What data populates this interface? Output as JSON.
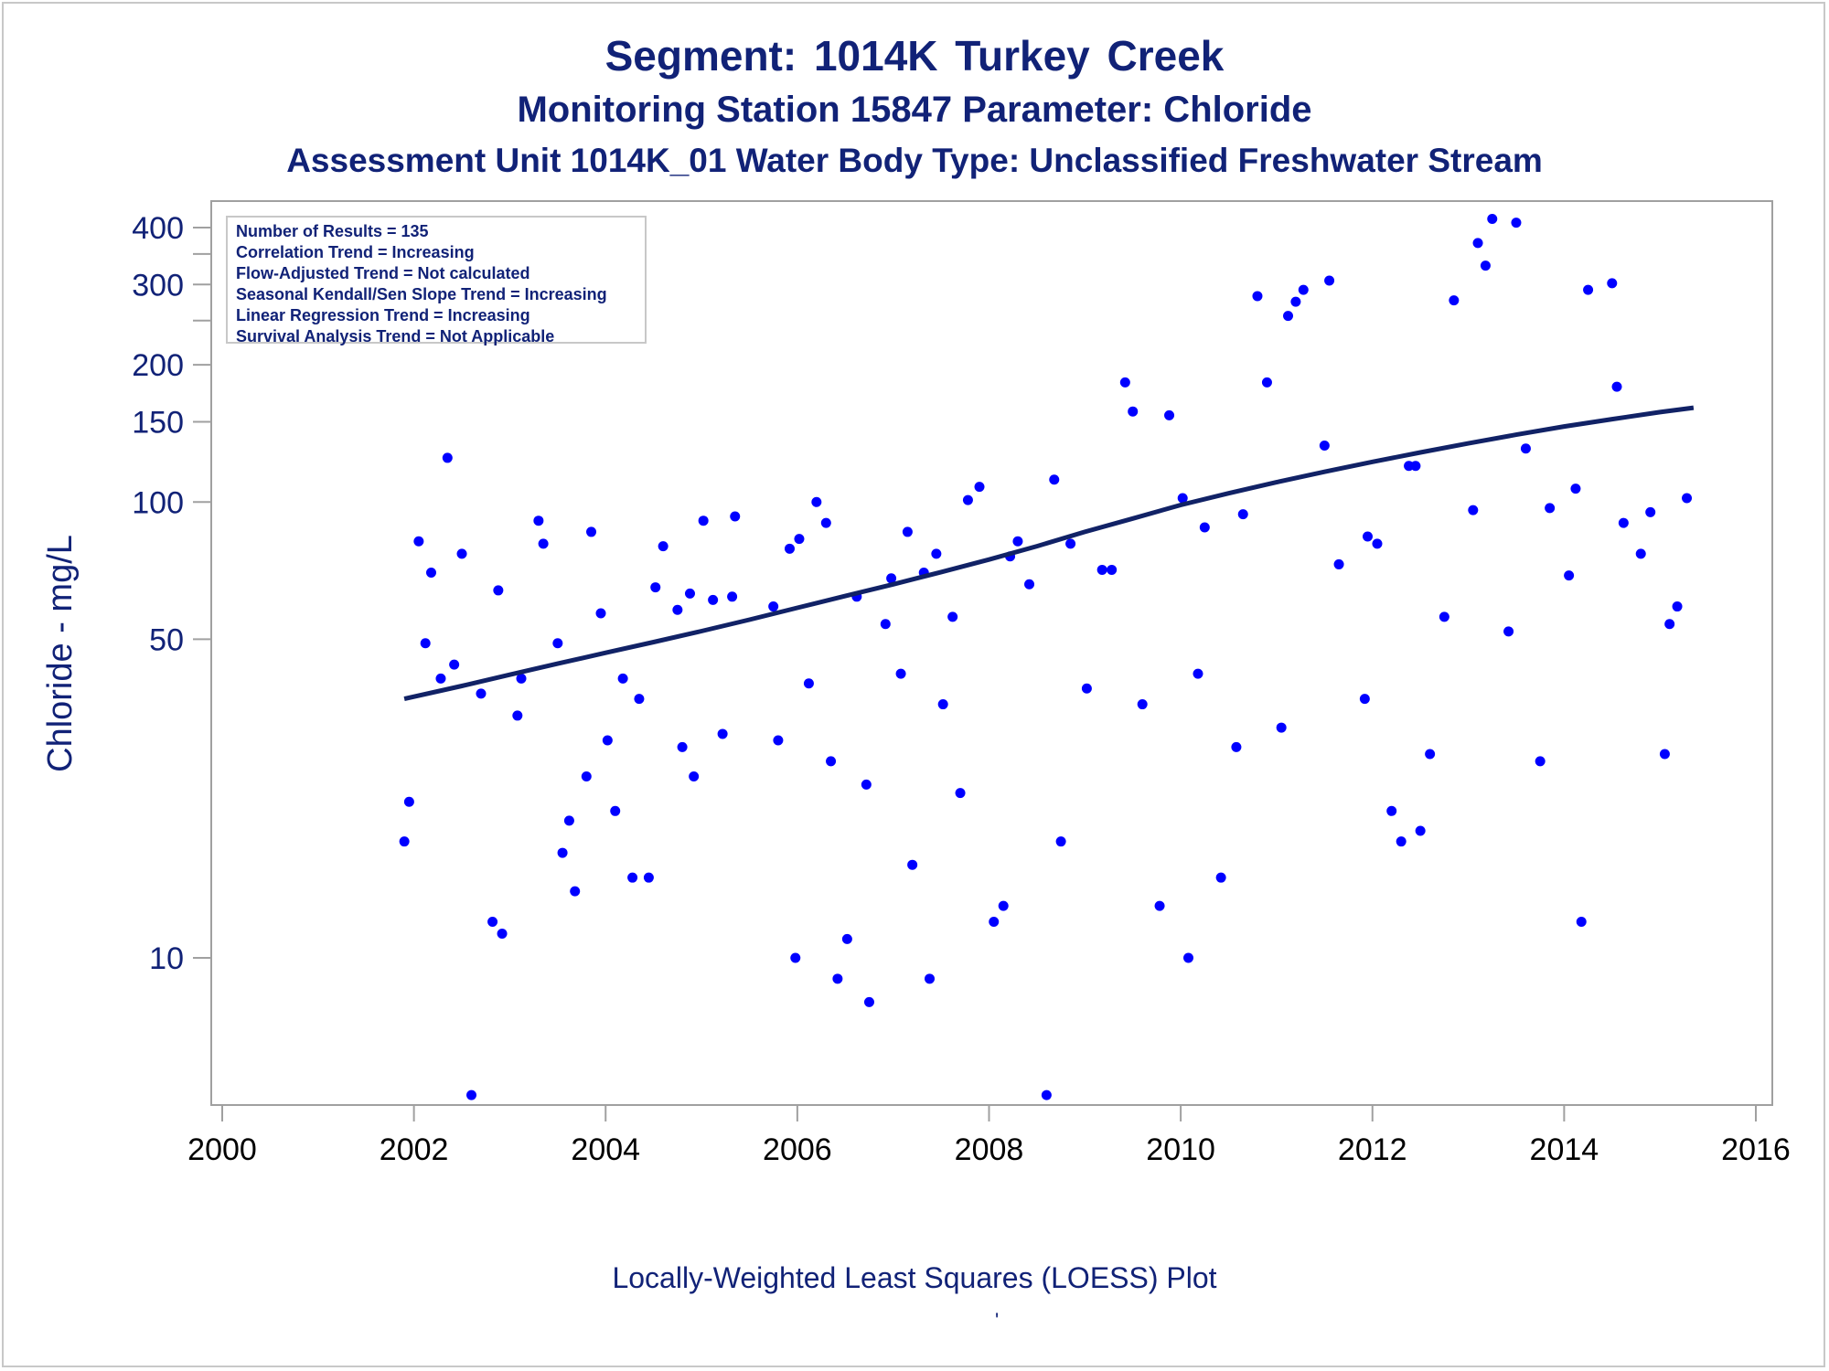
{
  "titles": {
    "line1": "Segment: 1014K  Turkey Creek",
    "line2": "Monitoring Station 15847 Parameter: Chloride",
    "line3": "Assessment Unit 1014K_01   Water Body Type: Unclassified Freshwater Stream"
  },
  "footer": "Locally-Weighted Least Squares (LOESS) Plot",
  "footer_mark": "'",
  "stats": [
    "Number of Results = 135",
    "Correlation Trend = Increasing",
    "Flow-Adjusted Trend = Not calculated",
    "Seasonal Kendall/Sen Slope Trend = Increasing",
    "Linear Regression Trend = Increasing",
    "Survival Analysis Trend = Not Applicable"
  ],
  "colors": {
    "points": "#0000ff",
    "trend": "#112266",
    "text": "#112277",
    "axis": "#a0a0a0"
  },
  "chart_data": {
    "type": "scatter",
    "ylabel": "Chloride - mg/L",
    "xlabel": "",
    "x_scale": "year",
    "y_scale": "log",
    "xlim": [
      2000,
      2016
    ],
    "ylim": [
      4.3,
      470
    ],
    "x_ticks": [
      2000,
      2002,
      2004,
      2006,
      2008,
      2010,
      2012,
      2014,
      2016
    ],
    "y_ticks": [
      10,
      50,
      100,
      150,
      200,
      300,
      400
    ],
    "grid": false,
    "points": [
      [
        2001.9,
        18
      ],
      [
        2001.95,
        22
      ],
      [
        2002.05,
        82
      ],
      [
        2002.12,
        49
      ],
      [
        2002.18,
        70
      ],
      [
        2002.28,
        41
      ],
      [
        2002.35,
        125
      ],
      [
        2002.42,
        44
      ],
      [
        2002.5,
        77
      ],
      [
        2002.6,
        5
      ],
      [
        2002.7,
        38
      ],
      [
        2002.82,
        12
      ],
      [
        2002.88,
        64
      ],
      [
        2002.92,
        11.3
      ],
      [
        2003.08,
        34
      ],
      [
        2003.12,
        41
      ],
      [
        2003.3,
        91
      ],
      [
        2003.35,
        81
      ],
      [
        2003.5,
        49
      ],
      [
        2003.55,
        17
      ],
      [
        2003.62,
        20
      ],
      [
        2003.68,
        14
      ],
      [
        2003.8,
        25
      ],
      [
        2003.85,
        86
      ],
      [
        2003.95,
        57
      ],
      [
        2004.02,
        30
      ],
      [
        2004.1,
        21
      ],
      [
        2004.18,
        41
      ],
      [
        2004.28,
        15
      ],
      [
        2004.35,
        37
      ],
      [
        2004.45,
        15
      ],
      [
        2004.52,
        65
      ],
      [
        2004.6,
        80
      ],
      [
        2004.75,
        58
      ],
      [
        2004.8,
        29
      ],
      [
        2004.88,
        63
      ],
      [
        2004.92,
        25
      ],
      [
        2005.02,
        91
      ],
      [
        2005.12,
        61
      ],
      [
        2005.22,
        31
      ],
      [
        2005.32,
        62
      ],
      [
        2005.35,
        93
      ],
      [
        2005.75,
        59
      ],
      [
        2005.8,
        30
      ],
      [
        2005.92,
        79
      ],
      [
        2005.98,
        10
      ],
      [
        2006.02,
        83
      ],
      [
        2006.12,
        40
      ],
      [
        2006.2,
        100
      ],
      [
        2006.3,
        90
      ],
      [
        2006.35,
        27
      ],
      [
        2006.42,
        9
      ],
      [
        2006.52,
        11
      ],
      [
        2006.62,
        62
      ],
      [
        2006.72,
        24
      ],
      [
        2006.75,
        8
      ],
      [
        2006.92,
        54
      ],
      [
        2006.98,
        68
      ],
      [
        2007.08,
        42
      ],
      [
        2007.15,
        86
      ],
      [
        2007.2,
        16
      ],
      [
        2007.32,
        70
      ],
      [
        2007.38,
        9
      ],
      [
        2007.45,
        77
      ],
      [
        2007.52,
        36
      ],
      [
        2007.62,
        56
      ],
      [
        2007.7,
        23
      ],
      [
        2007.78,
        101
      ],
      [
        2007.9,
        108
      ],
      [
        2008.05,
        12
      ],
      [
        2008.15,
        13
      ],
      [
        2008.22,
        76
      ],
      [
        2008.3,
        82
      ],
      [
        2008.42,
        66
      ],
      [
        2008.6,
        5
      ],
      [
        2008.68,
        112
      ],
      [
        2008.75,
        18
      ],
      [
        2008.85,
        81
      ],
      [
        2009.02,
        39
      ],
      [
        2009.18,
        71
      ],
      [
        2009.28,
        71
      ],
      [
        2009.42,
        183
      ],
      [
        2009.5,
        158
      ],
      [
        2009.6,
        36
      ],
      [
        2009.78,
        13
      ],
      [
        2009.88,
        155
      ],
      [
        2010.02,
        102
      ],
      [
        2010.08,
        10
      ],
      [
        2010.18,
        42
      ],
      [
        2010.25,
        88
      ],
      [
        2010.42,
        15
      ],
      [
        2010.58,
        29
      ],
      [
        2010.65,
        94
      ],
      [
        2010.8,
        283
      ],
      [
        2010.9,
        183
      ],
      [
        2011.05,
        32
      ],
      [
        2011.12,
        256
      ],
      [
        2011.2,
        275
      ],
      [
        2011.28,
        292
      ],
      [
        2011.5,
        133
      ],
      [
        2011.55,
        306
      ],
      [
        2011.65,
        73
      ],
      [
        2011.92,
        37
      ],
      [
        2011.95,
        84
      ],
      [
        2012.05,
        81
      ],
      [
        2012.2,
        21
      ],
      [
        2012.3,
        18
      ],
      [
        2012.38,
        120
      ],
      [
        2012.45,
        120
      ],
      [
        2012.5,
        19
      ],
      [
        2012.6,
        28
      ],
      [
        2012.75,
        56
      ],
      [
        2012.85,
        277
      ],
      [
        2013.05,
        96
      ],
      [
        2013.1,
        370
      ],
      [
        2013.18,
        330
      ],
      [
        2013.25,
        418
      ],
      [
        2013.42,
        52
      ],
      [
        2013.5,
        410
      ],
      [
        2013.6,
        131
      ],
      [
        2013.75,
        27
      ],
      [
        2013.85,
        97
      ],
      [
        2014.05,
        69
      ],
      [
        2014.12,
        107
      ],
      [
        2014.18,
        12
      ],
      [
        2014.25,
        292
      ],
      [
        2014.5,
        302
      ],
      [
        2014.55,
        179
      ],
      [
        2014.62,
        90
      ],
      [
        2014.8,
        77
      ],
      [
        2014.9,
        95
      ],
      [
        2015.05,
        28
      ],
      [
        2015.1,
        54
      ],
      [
        2015.18,
        59
      ],
      [
        2015.28,
        102
      ]
    ],
    "trend_line": [
      [
        2001.9,
        37
      ],
      [
        2002.5,
        39.5
      ],
      [
        2003.0,
        41.8
      ],
      [
        2003.5,
        44.2
      ],
      [
        2004.0,
        46.7
      ],
      [
        2004.5,
        49.3
      ],
      [
        2005.0,
        52.1
      ],
      [
        2005.5,
        55.2
      ],
      [
        2006.0,
        58.6
      ],
      [
        2006.5,
        62.2
      ],
      [
        2007.0,
        66
      ],
      [
        2007.5,
        70.2
      ],
      [
        2008.0,
        74.8
      ],
      [
        2008.5,
        80
      ],
      [
        2009.0,
        86
      ],
      [
        2009.5,
        92
      ],
      [
        2010.0,
        98.5
      ],
      [
        2010.5,
        104.5
      ],
      [
        2011.0,
        110.5
      ],
      [
        2011.5,
        116.5
      ],
      [
        2012.0,
        122.5
      ],
      [
        2012.5,
        128.5
      ],
      [
        2013.0,
        134.5
      ],
      [
        2013.5,
        140.5
      ],
      [
        2014.0,
        146.5
      ],
      [
        2014.5,
        152
      ],
      [
        2015.0,
        157.5
      ],
      [
        2015.35,
        161
      ]
    ]
  }
}
